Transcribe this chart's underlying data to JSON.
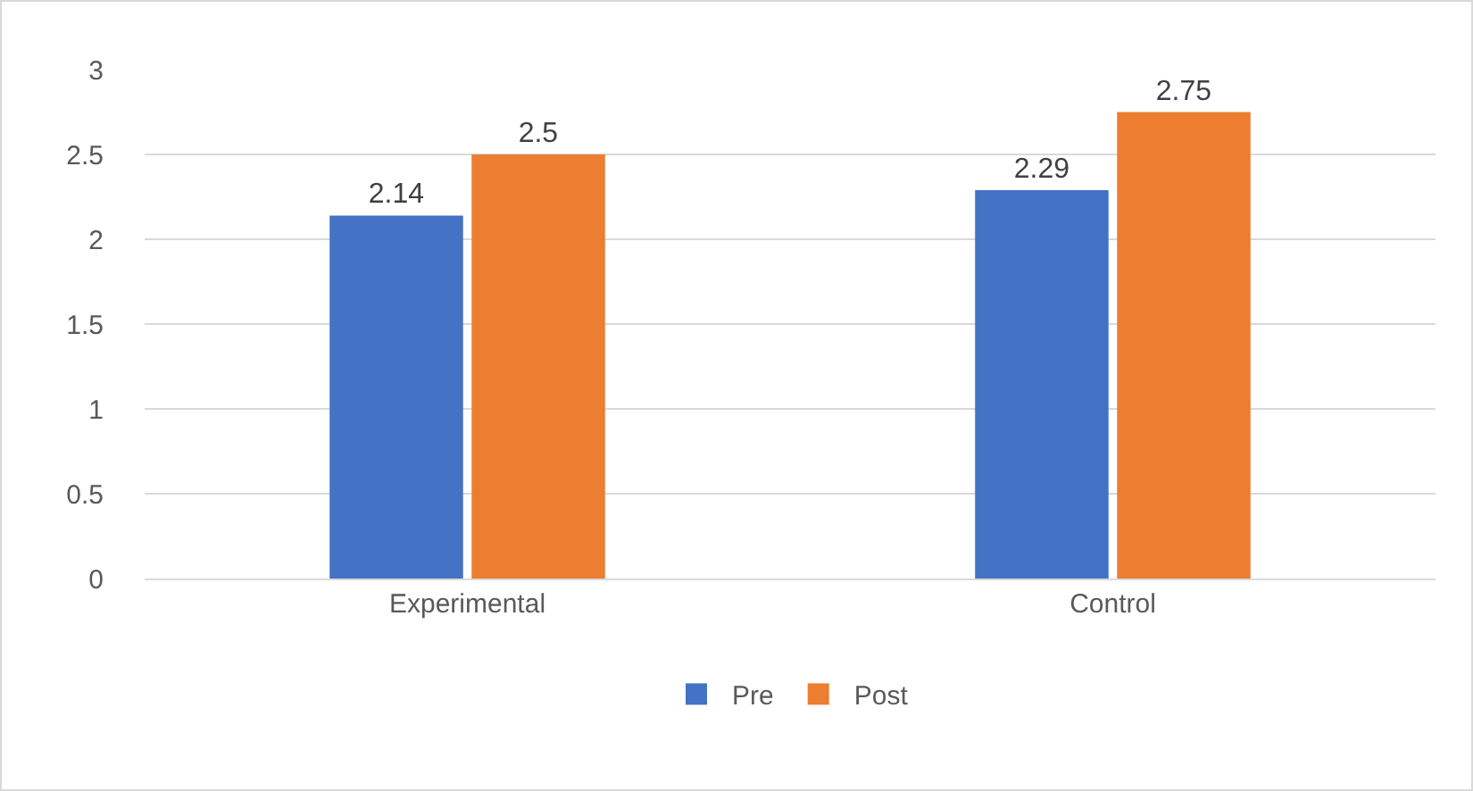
{
  "chart_data": {
    "type": "bar",
    "categories": [
      "Experimental",
      "Control"
    ],
    "series": [
      {
        "name": "Pre",
        "color": "#4472c4",
        "values": [
          2.14,
          2.29
        ]
      },
      {
        "name": "Post",
        "color": "#ed7d31",
        "values": [
          2.5,
          2.75
        ]
      }
    ],
    "ylim": [
      0,
      3
    ],
    "yticks": [
      0,
      0.5,
      1,
      1.5,
      2,
      2.5,
      3
    ],
    "grid": "y",
    "legend": "bottom",
    "data_labels": true
  }
}
